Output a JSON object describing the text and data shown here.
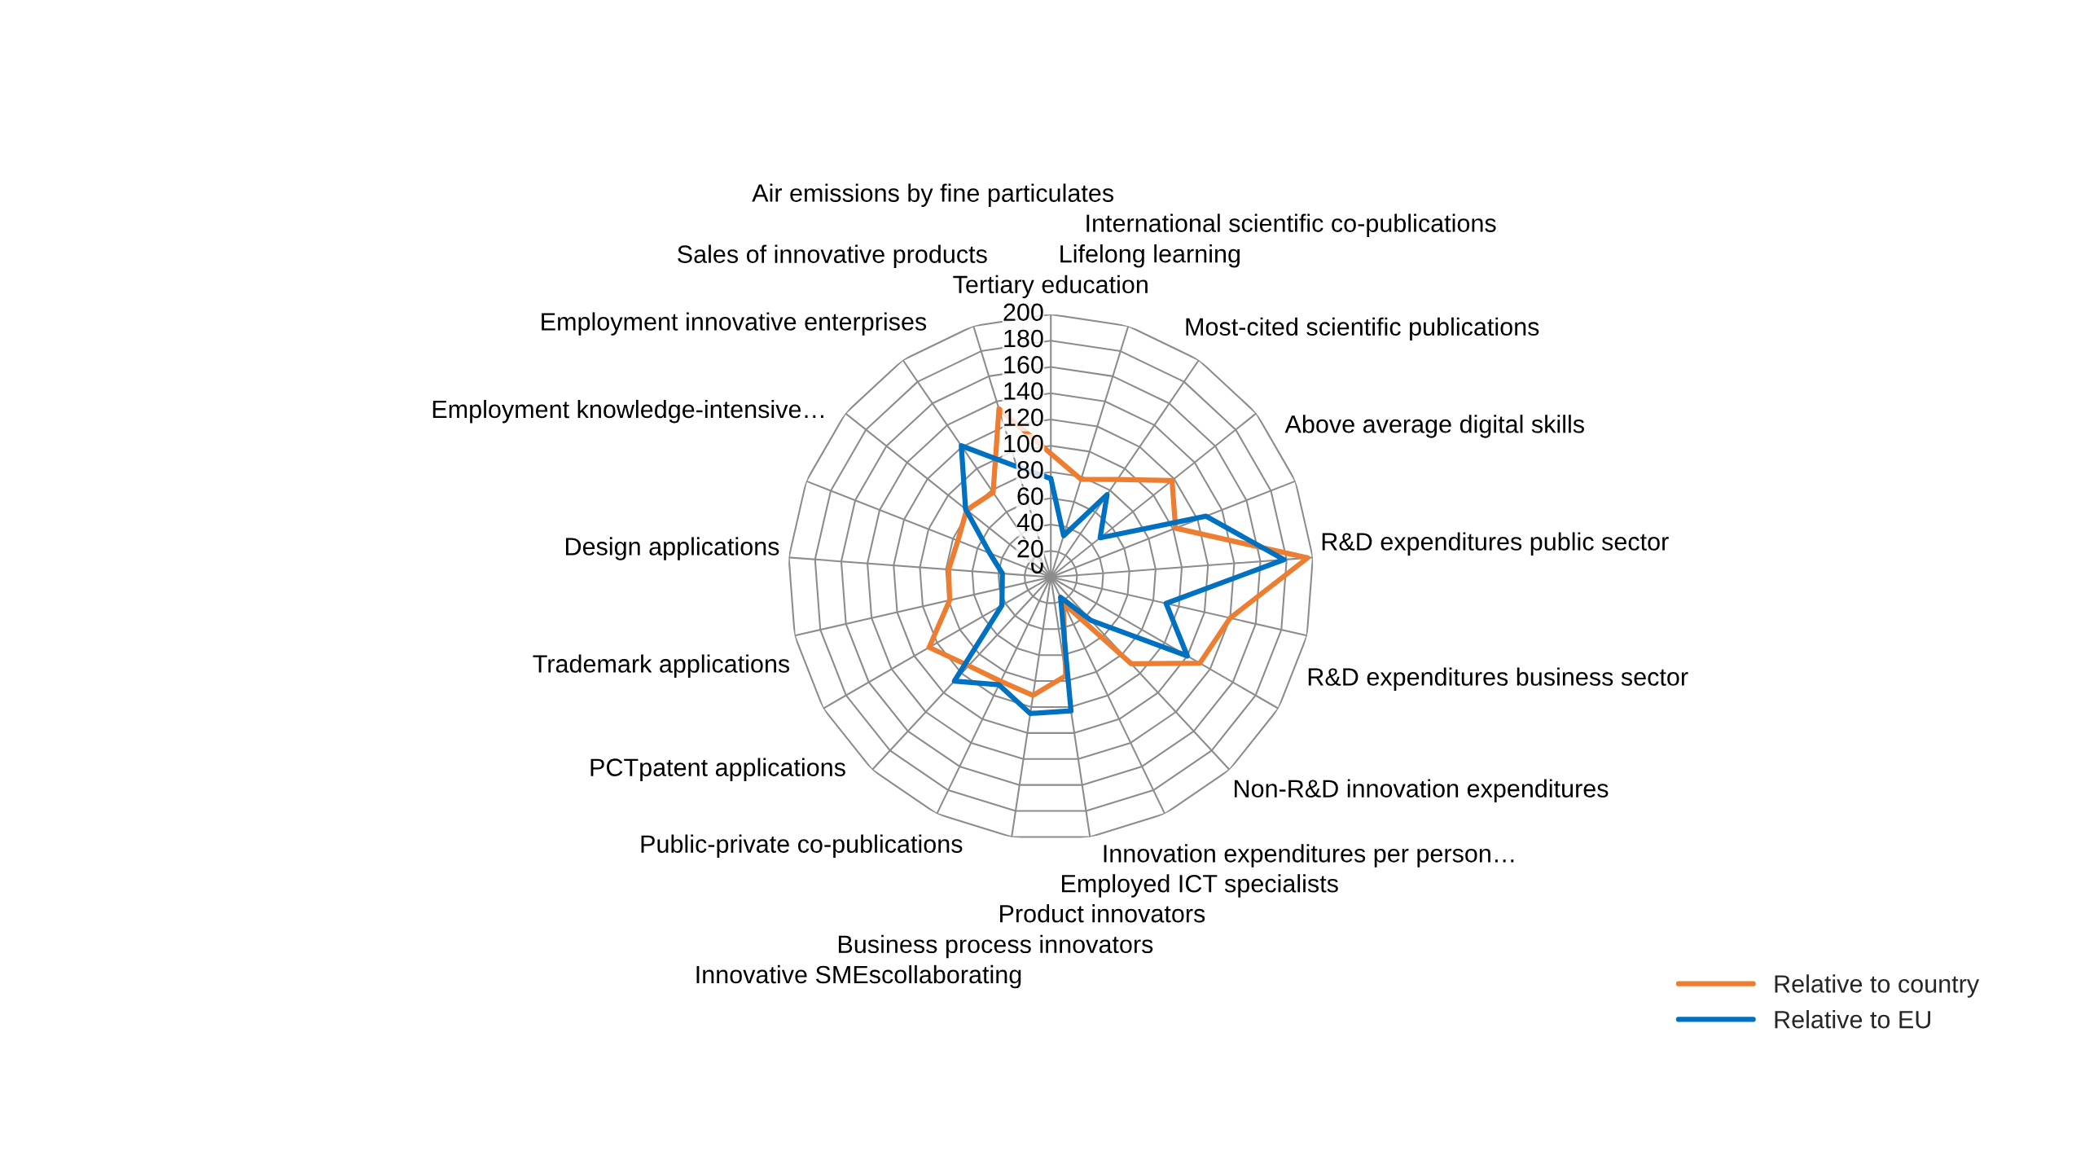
{
  "chart_data": {
    "type": "radar",
    "categories": [
      "Tertiary education",
      "Lifelong learning",
      "International scientific co-publications",
      "Most-cited scientific publications",
      "Above average digital skills",
      "R&D expenditures public sector",
      "R&D expenditures business sector",
      "Non-R&D innovation expenditures",
      "Innovation expenditures per person…",
      "Employed ICT specialists",
      "Product innovators",
      "Business process innovators",
      "Innovative SMEscollaborating",
      "Public-private co-publications",
      "PCTpatent applications",
      "Trademark applications",
      "Design applications",
      "Employment knowledge-intensive…",
      "Employment innovative enterprises",
      "Sales of innovative products",
      "Air emissions by fine particulates"
    ],
    "series": [
      {
        "name": "Relative to country",
        "color": "#ed7d31",
        "values": [
          94,
          78,
          90,
          118,
          102,
          196,
          140,
          131,
          90,
          22,
          76,
          91,
          88,
          92,
          107,
          79,
          78,
          76,
          82,
          78,
          134
        ]
      },
      {
        "name": "Relative to EU",
        "color": "#0070c0",
        "values": [
          75,
          33,
          76,
          48,
          127,
          178,
          90,
          120,
          45,
          17,
          103,
          105,
          91,
          108,
          43,
          38,
          37,
          50,
          83,
          121,
          88
        ]
      }
    ],
    "ylim": [
      0,
      200
    ],
    "yticks": [
      0,
      20,
      40,
      60,
      80,
      100,
      120,
      140,
      160,
      180,
      200
    ],
    "grid": true,
    "legend": "bottom right",
    "line_style": "solid",
    "marker": "none"
  }
}
